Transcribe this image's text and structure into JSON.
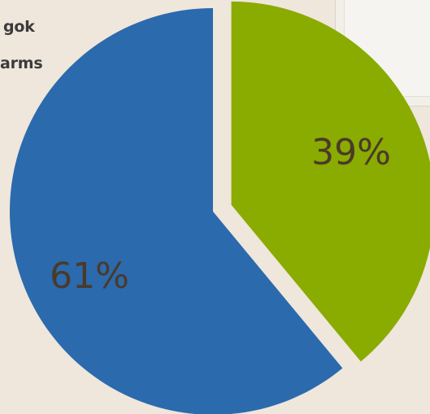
{
  "title_fragments": [
    "gok",
    "arms"
  ],
  "chart_data": {
    "type": "pie",
    "slices": [
      {
        "label": "39%",
        "value": 39,
        "color": "#8aab00"
      },
      {
        "label": "61%",
        "value": 61,
        "color": "#2b6aad"
      }
    ]
  },
  "colors": {
    "background": "#efe6dc",
    "slice_green": "#8aab00",
    "slice_blue": "#2b6aad",
    "label_text": "#4a3a2a"
  }
}
